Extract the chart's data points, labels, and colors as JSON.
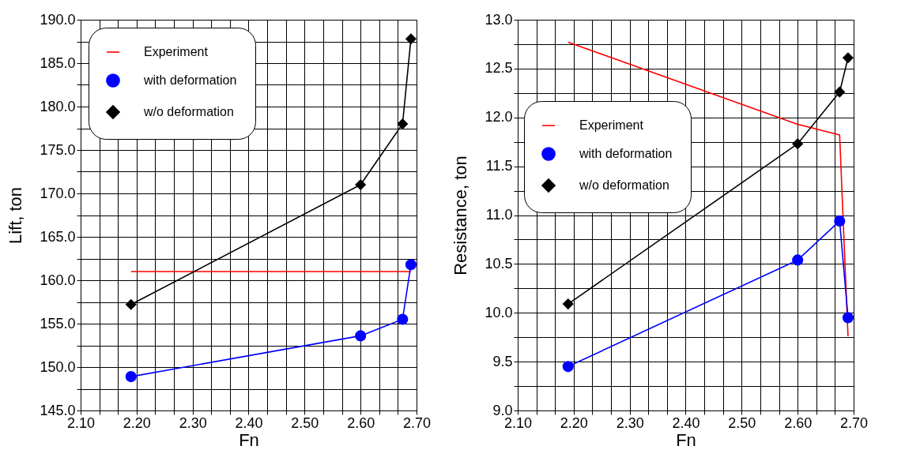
{
  "chart_data": [
    {
      "type": "line",
      "xlabel": "Fn",
      "ylabel": "Lift, ton",
      "legend": "top left",
      "grid": true,
      "line_style": "solid",
      "xlim": [
        2.1,
        2.7
      ],
      "ylim": [
        145,
        190
      ],
      "xticks": [
        {
          "value": 2.1,
          "label": "2.10"
        },
        {
          "value": 2.1333,
          "label": null
        },
        {
          "value": 2.1667,
          "label": null
        },
        {
          "value": 2.2,
          "label": "2.20"
        },
        {
          "value": 2.2333,
          "label": null
        },
        {
          "value": 2.2667,
          "label": null
        },
        {
          "value": 2.3,
          "label": "2.30"
        },
        {
          "value": 2.3333,
          "label": null
        },
        {
          "value": 2.3667,
          "label": null
        },
        {
          "value": 2.4,
          "label": "2.40"
        },
        {
          "value": 2.4333,
          "label": null
        },
        {
          "value": 2.4667,
          "label": null
        },
        {
          "value": 2.5,
          "label": "2.50"
        },
        {
          "value": 2.5333,
          "label": null
        },
        {
          "value": 2.5667,
          "label": null
        },
        {
          "value": 2.6,
          "label": "2.60"
        },
        {
          "value": 2.6333,
          "label": null
        },
        {
          "value": 2.6667,
          "label": null
        },
        {
          "value": 2.7,
          "label": "2.70"
        }
      ],
      "yticks": [
        {
          "value": 145,
          "label": "145.0"
        },
        {
          "value": 147.5,
          "label": null
        },
        {
          "value": 150,
          "label": "150.0"
        },
        {
          "value": 152.5,
          "label": null
        },
        {
          "value": 155,
          "label": "155.0"
        },
        {
          "value": 157.5,
          "label": null
        },
        {
          "value": 160,
          "label": "160.0"
        },
        {
          "value": 162.5,
          "label": null
        },
        {
          "value": 165,
          "label": "165.0"
        },
        {
          "value": 167.5,
          "label": null
        },
        {
          "value": 170,
          "label": "170.0"
        },
        {
          "value": 172.5,
          "label": null
        },
        {
          "value": 175,
          "label": "175.0"
        },
        {
          "value": 177.5,
          "label": null
        },
        {
          "value": 180,
          "label": "180.0"
        },
        {
          "value": 182.5,
          "label": null
        },
        {
          "value": 185,
          "label": "185.0"
        },
        {
          "value": 187.5,
          "label": null
        },
        {
          "value": 190,
          "label": "190.0"
        }
      ],
      "x": [
        2.19,
        2.6,
        2.675,
        2.69
      ],
      "series": [
        {
          "name": "Experiment",
          "color": "#ff0000",
          "marker": "none",
          "x": [
            2.19,
            2.69
          ],
          "values": [
            161.0,
            161.0
          ]
        },
        {
          "name": "with deformation",
          "color": "#0000ff",
          "marker": "circle",
          "values": [
            148.9,
            153.6,
            155.5,
            161.8
          ]
        },
        {
          "name": "w/o  deformation",
          "color": "#000000",
          "marker": "diamond",
          "values": [
            157.2,
            171.0,
            178.0,
            187.8
          ]
        }
      ]
    },
    {
      "type": "line",
      "xlabel": "Fn",
      "ylabel": "Resistance, ton",
      "legend": "left",
      "grid": true,
      "line_style": "solid",
      "xlim": [
        2.1,
        2.7
      ],
      "ylim": [
        9.0,
        13.0
      ],
      "xticks": [
        {
          "value": 2.1,
          "label": "2.10"
        },
        {
          "value": 2.1333,
          "label": null
        },
        {
          "value": 2.1667,
          "label": null
        },
        {
          "value": 2.2,
          "label": "2.20"
        },
        {
          "value": 2.2333,
          "label": null
        },
        {
          "value": 2.2667,
          "label": null
        },
        {
          "value": 2.3,
          "label": "2.30"
        },
        {
          "value": 2.3333,
          "label": null
        },
        {
          "value": 2.3667,
          "label": null
        },
        {
          "value": 2.4,
          "label": "2.40"
        },
        {
          "value": 2.4333,
          "label": null
        },
        {
          "value": 2.4667,
          "label": null
        },
        {
          "value": 2.5,
          "label": "2.50"
        },
        {
          "value": 2.5333,
          "label": null
        },
        {
          "value": 2.5667,
          "label": null
        },
        {
          "value": 2.6,
          "label": "2.60"
        },
        {
          "value": 2.6333,
          "label": null
        },
        {
          "value": 2.6667,
          "label": null
        },
        {
          "value": 2.7,
          "label": "2.70"
        }
      ],
      "yticks": [
        {
          "value": 9.0,
          "label": "9.0"
        },
        {
          "value": 9.25,
          "label": null
        },
        {
          "value": 9.5,
          "label": "9.5"
        },
        {
          "value": 9.75,
          "label": null
        },
        {
          "value": 10.0,
          "label": "10.0"
        },
        {
          "value": 10.25,
          "label": null
        },
        {
          "value": 10.5,
          "label": "10.5"
        },
        {
          "value": 10.75,
          "label": null
        },
        {
          "value": 11.0,
          "label": "11.0"
        },
        {
          "value": 11.25,
          "label": null
        },
        {
          "value": 11.5,
          "label": "11.5"
        },
        {
          "value": 11.75,
          "label": null
        },
        {
          "value": 12.0,
          "label": "12.0"
        },
        {
          "value": 12.25,
          "label": null
        },
        {
          "value": 12.5,
          "label": "12.5"
        },
        {
          "value": 12.75,
          "label": null
        },
        {
          "value": 13.0,
          "label": "13.0"
        }
      ],
      "x": [
        2.19,
        2.6,
        2.675,
        2.69
      ],
      "series": [
        {
          "name": "Experiment",
          "color": "#ff0000",
          "marker": "none",
          "values": [
            12.77,
            11.93,
            11.82,
            9.76
          ]
        },
        {
          "name": "with deformation",
          "color": "#0000ff",
          "marker": "circle",
          "values": [
            9.45,
            10.54,
            10.94,
            9.95
          ]
        },
        {
          "name": "w/o  deformation",
          "color": "#000000",
          "marker": "diamond",
          "values": [
            10.09,
            11.73,
            12.26,
            12.61
          ]
        }
      ]
    }
  ]
}
